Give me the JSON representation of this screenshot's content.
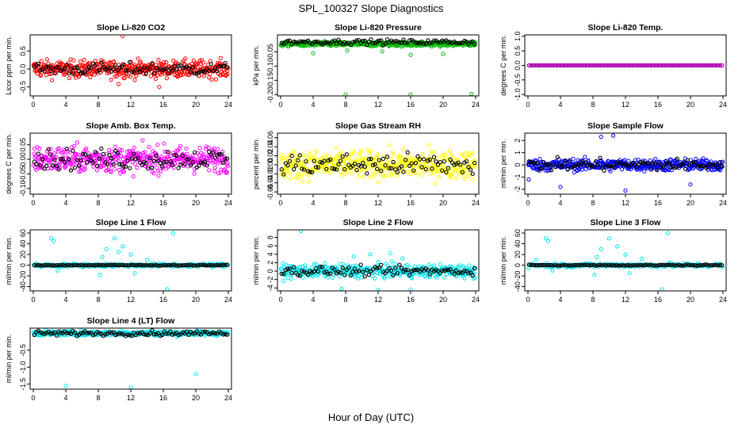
{
  "figure": {
    "title": "SPL_100327  Slope Diagnostics",
    "xlabel": "Hour of Day (UTC)"
  },
  "chart_data": [
    {
      "type": "scatter",
      "title": "Slope Li-820 CO2",
      "ylabel": "Licor ppm per min.",
      "xlim": [
        0,
        24
      ],
      "xticks": [
        0,
        4,
        8,
        12,
        16,
        20,
        24
      ],
      "ylim": [
        -0.75,
        0.95
      ],
      "yticks": [
        -0.5,
        0.0,
        0.5
      ],
      "ytick_labels": [
        "-0.5",
        "0.0",
        "0.5"
      ],
      "series": [
        {
          "name": "all",
          "color": "#ff0000",
          "n": 420,
          "center": 0.0,
          "spread": 0.17,
          "values": [],
          "outliers": [
            [
              11,
              0.92
            ],
            [
              15.5,
              -0.5
            ],
            [
              10.5,
              -0.42
            ],
            [
              1,
              0.22
            ]
          ]
        },
        {
          "name": "hourly",
          "color": "#000000",
          "n": 96,
          "center": 0.0,
          "spread": 0.12,
          "values": []
        }
      ]
    },
    {
      "type": "scatter",
      "title": "Slope Li-820 Pressure",
      "ylabel": "kPa per min.",
      "xlim": [
        0,
        24
      ],
      "xticks": [
        0,
        4,
        8,
        12,
        16,
        20,
        24
      ],
      "ylim": [
        -0.205,
        0.01
      ],
      "yticks": [
        -0.2,
        -0.15,
        -0.1,
        -0.05
      ],
      "ytick_labels": [
        "-0.20",
        "-0.15",
        "-0.10",
        "-0.05"
      ],
      "series": [
        {
          "name": "all",
          "color": "#00bb00",
          "n": 420,
          "center": -0.022,
          "spread": 0.006,
          "values": [],
          "outliers": [
            [
              8,
              -0.2
            ],
            [
              16,
              -0.2
            ],
            [
              23.5,
              -0.198
            ],
            [
              4,
              -0.055
            ],
            [
              16,
              -0.06
            ],
            [
              20,
              -0.057
            ],
            [
              12.5,
              -0.048
            ],
            [
              8.2,
              -0.045
            ]
          ]
        },
        {
          "name": "hourly",
          "color": "#000000",
          "n": 96,
          "center": -0.015,
          "spread": 0.006,
          "values": []
        }
      ]
    },
    {
      "type": "scatter",
      "title": "Slope Li-820 Temp.",
      "ylabel": "degrees C per min.",
      "xlim": [
        0,
        24
      ],
      "xticks": [
        0,
        4,
        8,
        12,
        16,
        20,
        24
      ],
      "ylim": [
        -1.05,
        1.05
      ],
      "yticks": [
        -1.0,
        -0.5,
        0.0,
        0.5,
        1.0
      ],
      "ytick_labels": [
        "-1.0",
        "-0.5",
        "0.0",
        "0.5",
        "1.0"
      ],
      "series": [
        {
          "name": "all",
          "color": "#ff00ff",
          "n": 96,
          "center": 0.0,
          "spread": 0.0,
          "values": []
        },
        {
          "name": "hourly",
          "color": "#aa00aa",
          "n": 96,
          "center": 0.0,
          "spread": 0.0,
          "values": []
        }
      ]
    },
    {
      "type": "scatter",
      "title": "Slope Amb. Box Temp.",
      "ylabel": "degrees C per min.",
      "xlim": [
        0,
        24
      ],
      "xticks": [
        0,
        4,
        8,
        12,
        16,
        20,
        24
      ],
      "ylim": [
        -0.12,
        0.09
      ],
      "yticks": [
        -0.1,
        -0.05,
        0.0,
        0.05
      ],
      "ytick_labels": [
        "-0.10",
        "-0.05",
        "0.00",
        "0.05"
      ],
      "series": [
        {
          "name": "all",
          "color": "#ff00ff",
          "n": 420,
          "center": 0.0,
          "spread": 0.032,
          "values": []
        },
        {
          "name": "hourly",
          "color": "#000000",
          "n": 96,
          "center": 0.0,
          "spread": 0.025,
          "values": []
        }
      ]
    },
    {
      "type": "scatter",
      "title": "Slope Gas Stream RH",
      "ylabel": "percent per min.",
      "xlim": [
        0,
        24
      ],
      "xticks": [
        0,
        4,
        8,
        12,
        16,
        20,
        24
      ],
      "ylim": [
        -0.065,
        0.07
      ],
      "yticks": [
        -0.06,
        -0.04,
        -0.02,
        0.0,
        0.02,
        0.04,
        0.06
      ],
      "ytick_labels": [
        "-0.06",
        "-0.04",
        "-0.02",
        "0.00",
        "0.02",
        "0.04",
        "0.06"
      ],
      "series": [
        {
          "name": "all",
          "color": "#ffff00",
          "n": 420,
          "center": 0.0,
          "spread": 0.022,
          "values": []
        },
        {
          "name": "hourly",
          "color": "#000000",
          "n": 96,
          "center": 0.0,
          "spread": 0.018,
          "values": []
        }
      ]
    },
    {
      "type": "scatter",
      "title": "Slope Sample Flow",
      "ylabel": "ml/min per min.",
      "xlim": [
        0,
        24
      ],
      "xticks": [
        0,
        4,
        8,
        12,
        16,
        20,
        24
      ],
      "ylim": [
        -2.4,
        2.6
      ],
      "yticks": [
        -2,
        -1,
        0,
        1,
        2
      ],
      "ytick_labels": [
        "-2",
        "-1",
        "0",
        "1",
        "2"
      ],
      "series": [
        {
          "name": "all",
          "color": "#0000ff",
          "n": 420,
          "center": 0.0,
          "spread": 0.35,
          "values": [],
          "outliers": [
            [
              4,
              -1.8
            ],
            [
              12,
              -2.1
            ],
            [
              9,
              2.3
            ],
            [
              10.5,
              2.4
            ],
            [
              20,
              -1.6
            ],
            [
              0.1,
              -1.2
            ]
          ]
        },
        {
          "name": "hourly",
          "color": "#000000",
          "n": 96,
          "center": 0.0,
          "spread": 0.35,
          "values": []
        }
      ]
    },
    {
      "type": "scatter",
      "title": "Slope Line 1 Flow",
      "ylabel": "ml/min per min.",
      "xlim": [
        0,
        24
      ],
      "xticks": [
        0,
        4,
        8,
        12,
        16,
        20,
        24
      ],
      "ylim": [
        -48,
        66
      ],
      "yticks": [
        -40,
        -20,
        0,
        20,
        40,
        60
      ],
      "ytick_labels": [
        "-40",
        "-20",
        "0",
        "20",
        "40",
        "60"
      ],
      "series": [
        {
          "name": "all",
          "color": "#00e5ee",
          "n": 190,
          "center": 0.0,
          "spread": 2.5,
          "values": [],
          "outliers": [
            [
              2.2,
              50
            ],
            [
              2.5,
              45
            ],
            [
              9,
              30
            ],
            [
              10,
              50
            ],
            [
              11,
              35
            ],
            [
              8.5,
              15
            ],
            [
              12,
              20
            ],
            [
              12.5,
              -15
            ],
            [
              16.5,
              -45
            ],
            [
              17.2,
              60
            ],
            [
              8.2,
              -18
            ],
            [
              3,
              -10
            ],
            [
              14,
              10
            ],
            [
              10.5,
              25
            ]
          ]
        },
        {
          "name": "hourly",
          "color": "#000000",
          "n": 96,
          "center": 0.0,
          "spread": 0.6,
          "values": []
        }
      ]
    },
    {
      "type": "scatter",
      "title": "Slope Line 2 Flow",
      "ylabel": "ml/min per min.",
      "xlim": [
        0,
        24
      ],
      "xticks": [
        0,
        4,
        8,
        12,
        16,
        20,
        24
      ],
      "ylim": [
        -4.7,
        9.8
      ],
      "yticks": [
        -4,
        -2,
        0,
        2,
        4,
        6,
        8
      ],
      "ytick_labels": [
        "-4",
        "-2",
        "0",
        "2",
        "4",
        "6",
        "8"
      ],
      "series": [
        {
          "name": "all",
          "color": "#00e5ee",
          "n": 380,
          "center": 0.0,
          "spread": 1.1,
          "values": [],
          "outliers": [
            [
              2.5,
              9.5
            ],
            [
              11,
              4
            ],
            [
              13.5,
              4.2
            ],
            [
              15,
              3
            ],
            [
              7.5,
              -4.2
            ],
            [
              12,
              -4.5
            ],
            [
              16,
              -4.4
            ],
            [
              9,
              3.5
            ]
          ]
        },
        {
          "name": "hourly",
          "color": "#000000",
          "n": 96,
          "center": 0.0,
          "spread": 0.8,
          "values": []
        }
      ]
    },
    {
      "type": "scatter",
      "title": "Slope Line 3 Flow",
      "ylabel": "ml/min per min.",
      "xlim": [
        0,
        24
      ],
      "xticks": [
        0,
        4,
        8,
        12,
        16,
        20,
        24
      ],
      "ylim": [
        -48,
        66
      ],
      "yticks": [
        -40,
        -20,
        0,
        20,
        40,
        60
      ],
      "ytick_labels": [
        "-40",
        "-20",
        "0",
        "20",
        "40",
        "60"
      ],
      "series": [
        {
          "name": "all",
          "color": "#00e5ee",
          "n": 200,
          "center": 0.0,
          "spread": 3.0,
          "values": [],
          "outliers": [
            [
              2.2,
              50
            ],
            [
              2.5,
              45
            ],
            [
              9,
              30
            ],
            [
              10,
              50
            ],
            [
              11,
              35
            ],
            [
              8.5,
              15
            ],
            [
              12,
              20
            ],
            [
              12.5,
              -15
            ],
            [
              16.5,
              -45
            ],
            [
              17.2,
              60
            ],
            [
              8.2,
              -18
            ],
            [
              3,
              -10
            ],
            [
              1,
              10
            ],
            [
              14,
              12
            ]
          ]
        },
        {
          "name": "hourly",
          "color": "#000000",
          "n": 96,
          "center": 0.0,
          "spread": 0.8,
          "values": []
        }
      ]
    },
    {
      "type": "scatter",
      "title": "Slope Line 4 (LT) Flow",
      "ylabel": "ml/min per min.",
      "xlim": [
        0,
        24
      ],
      "xticks": [
        0,
        4,
        8,
        12,
        16,
        20,
        24
      ],
      "ylim": [
        -1.65,
        0.15
      ],
      "yticks": [
        -1.5,
        -1.0,
        -0.5
      ],
      "ytick_labels": [
        "-1.5",
        "-1.0",
        "-0.5"
      ],
      "series": [
        {
          "name": "all",
          "color": "#00e5ee",
          "n": 380,
          "center": 0.0,
          "spread": 0.05,
          "values": [],
          "outliers": [
            [
              4,
              -1.55
            ],
            [
              12,
              -1.6
            ],
            [
              20,
              -1.2
            ]
          ]
        },
        {
          "name": "hourly",
          "color": "#000000",
          "n": 96,
          "center": 0.0,
          "spread": 0.05,
          "values": []
        }
      ]
    }
  ]
}
